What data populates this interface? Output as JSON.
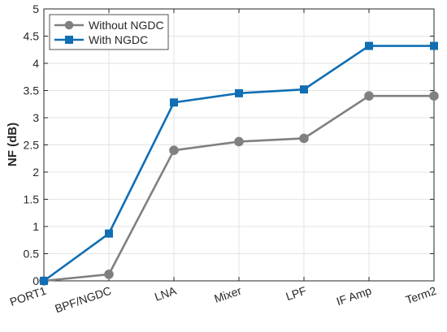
{
  "chart_data": {
    "type": "line",
    "title": "",
    "xlabel": "",
    "ylabel": "NF (dB)",
    "categories": [
      "PORT1",
      "BPF/NGDC",
      "LNA",
      "Mixer",
      "LPF",
      "IF Amp",
      "Term2"
    ],
    "ylim": [
      0,
      5
    ],
    "yticks": [
      0,
      0.5,
      1,
      1.5,
      2,
      2.5,
      3,
      3.5,
      4,
      4.5,
      5
    ],
    "ytick_labels": [
      "0",
      "0.5",
      "1",
      "1.5",
      "2",
      "2.5",
      "3",
      "3.5",
      "4",
      "4.5",
      "5"
    ],
    "grid": true,
    "legend_position": "top-left",
    "series": [
      {
        "name": "Without NGDC",
        "values": [
          0,
          0.12,
          2.4,
          2.56,
          2.62,
          3.4,
          3.4
        ],
        "color": "#808080",
        "marker": "circle"
      },
      {
        "name": "With NGDC",
        "values": [
          0,
          0.87,
          3.28,
          3.45,
          3.52,
          4.32,
          4.32
        ],
        "color": "#0f6eb4",
        "marker": "square"
      }
    ]
  }
}
